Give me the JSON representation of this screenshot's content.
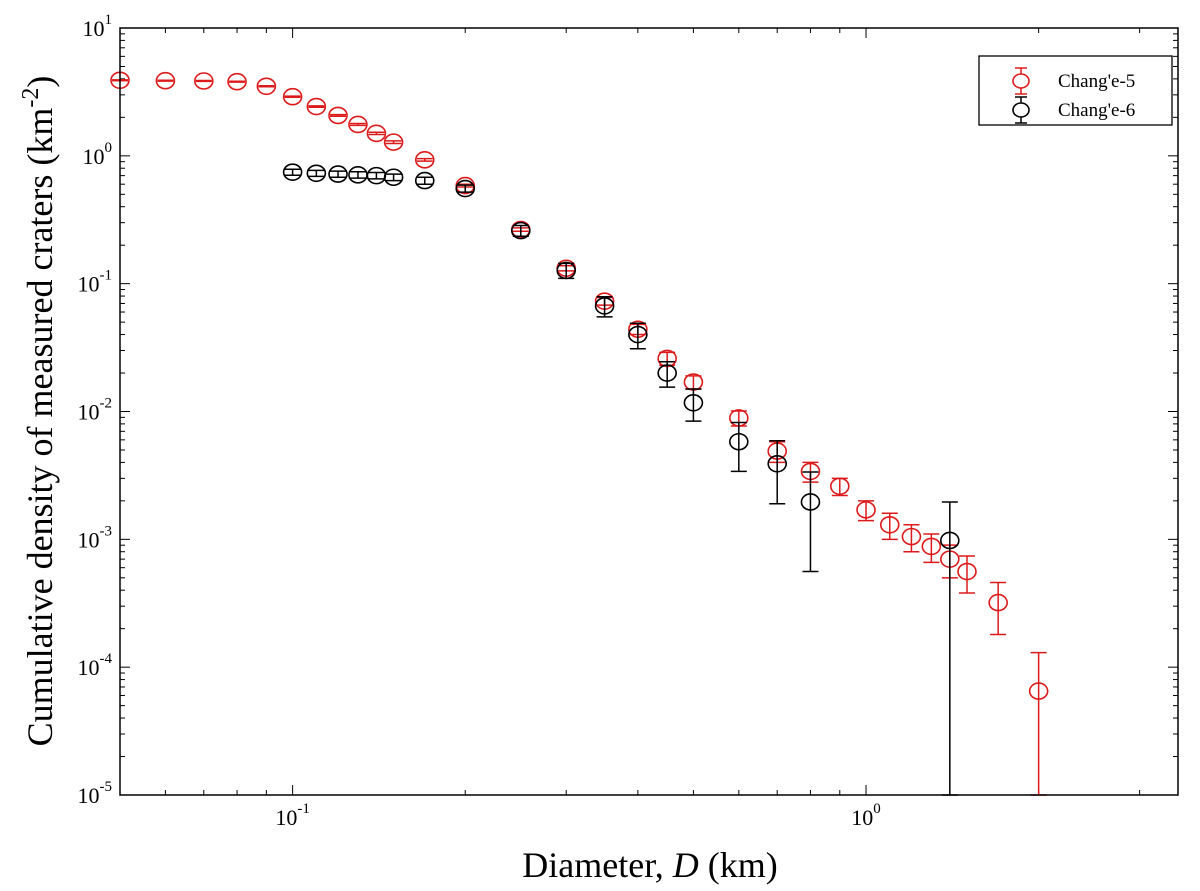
{
  "chart_data": {
    "type": "scatter",
    "title": "",
    "xlabel": "Diameter, ",
    "xlabel_var": "D",
    "xlabel_unit": " (km)",
    "ylabel": "Cumulative density of measured craters (km",
    "ylabel_sup": "-2",
    "ylabel_end": ")",
    "x_scale": "log",
    "y_scale": "log",
    "xlim": [
      0.05,
      3.5
    ],
    "ylim": [
      1e-05,
      10
    ],
    "grid": false,
    "legend_position": "top-right",
    "x_ticks": [
      {
        "value": 0.1,
        "base": "10",
        "exp": "-1"
      },
      {
        "value": 1,
        "base": "10",
        "exp": "0"
      }
    ],
    "y_ticks": [
      {
        "value": 10,
        "base": "10",
        "exp": "1"
      },
      {
        "value": 1,
        "base": "10",
        "exp": "0"
      },
      {
        "value": 0.1,
        "base": "10",
        "exp": "-1"
      },
      {
        "value": 0.01,
        "base": "10",
        "exp": "-2"
      },
      {
        "value": 0.001,
        "base": "10",
        "exp": "-3"
      },
      {
        "value": 0.0001,
        "base": "10",
        "exp": "-4"
      },
      {
        "value": 1e-05,
        "base": "10",
        "exp": "-5"
      }
    ],
    "series": [
      {
        "name": "Chang'e-5",
        "color": "#dd1a1a",
        "x": [
          0.05,
          0.06,
          0.07,
          0.08,
          0.09,
          0.1,
          0.11,
          0.12,
          0.13,
          0.14,
          0.15,
          0.17,
          0.2,
          0.25,
          0.3,
          0.35,
          0.4,
          0.45,
          0.5,
          0.6,
          0.7,
          0.8,
          0.9,
          1.0,
          1.1,
          1.2,
          1.3,
          1.4,
          1.5,
          1.7,
          2.0
        ],
        "y": [
          3.9,
          3.87,
          3.85,
          3.8,
          3.5,
          2.9,
          2.43,
          2.07,
          1.76,
          1.5,
          1.28,
          0.93,
          0.585,
          0.265,
          0.132,
          0.073,
          0.044,
          0.026,
          0.017,
          0.0089,
          0.0049,
          0.0034,
          0.0026,
          0.0017,
          0.0013,
          0.00105,
          0.00088,
          0.0007,
          0.00056,
          0.00032,
          6.5e-05
        ],
        "y_err_low": [
          0.03,
          0.03,
          0.03,
          0.03,
          0.03,
          0.03,
          0.03,
          0.03,
          0.03,
          0.03,
          0.03,
          0.02,
          0.015,
          0.008,
          0.006,
          0.005,
          0.004,
          0.003,
          0.002,
          0.0012,
          0.0009,
          0.0006,
          0.0004,
          0.0003,
          0.0003,
          0.00025,
          0.00022,
          0.0002,
          0.00018,
          0.00014,
          6.5e-05
        ],
        "y_err_high": [
          0.03,
          0.03,
          0.03,
          0.03,
          0.03,
          0.03,
          0.03,
          0.03,
          0.03,
          0.03,
          0.03,
          0.02,
          0.015,
          0.008,
          0.006,
          0.005,
          0.004,
          0.003,
          0.002,
          0.0012,
          0.0009,
          0.0006,
          0.0004,
          0.0003,
          0.0003,
          0.00025,
          0.00022,
          0.0002,
          0.00018,
          0.00014,
          6.5e-05
        ]
      },
      {
        "name": "Chang'e-6",
        "color": "#000000",
        "x": [
          0.1,
          0.11,
          0.12,
          0.13,
          0.14,
          0.15,
          0.17,
          0.2,
          0.25,
          0.3,
          0.35,
          0.4,
          0.45,
          0.5,
          0.6,
          0.7,
          0.8,
          1.4
        ],
        "y": [
          0.745,
          0.73,
          0.72,
          0.71,
          0.7,
          0.68,
          0.64,
          0.555,
          0.26,
          0.127,
          0.067,
          0.04,
          0.02,
          0.0117,
          0.0058,
          0.0039,
          0.00196,
          0.00098
        ],
        "y_err_low": [
          0.04,
          0.04,
          0.04,
          0.04,
          0.04,
          0.04,
          0.04,
          0.035,
          0.025,
          0.017,
          0.012,
          0.009,
          0.0045,
          0.0033,
          0.0024,
          0.002,
          0.0014,
          0.00098
        ],
        "y_err_high": [
          0.04,
          0.04,
          0.04,
          0.04,
          0.04,
          0.04,
          0.04,
          0.035,
          0.025,
          0.017,
          0.012,
          0.009,
          0.0045,
          0.0033,
          0.0024,
          0.002,
          0.0014,
          0.00098
        ]
      }
    ]
  }
}
